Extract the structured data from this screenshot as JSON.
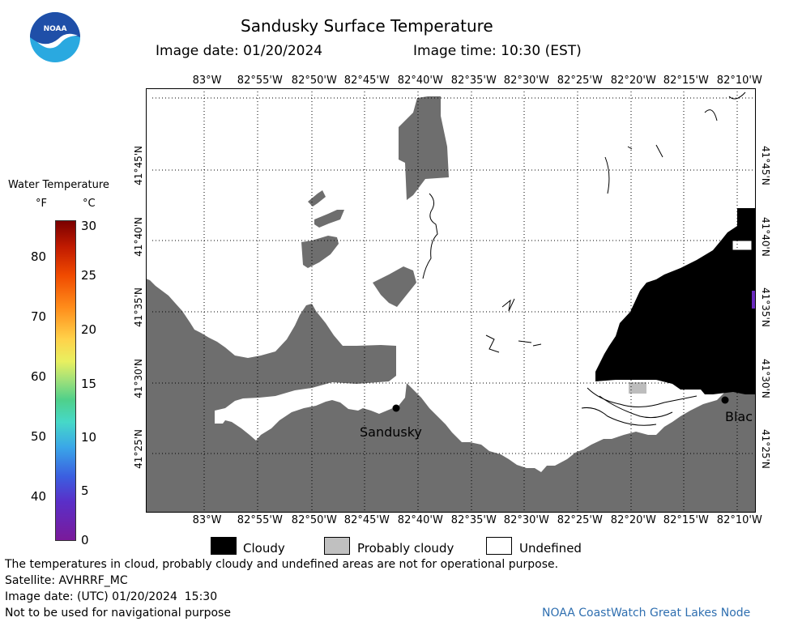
{
  "header": {
    "title": "Sandusky Surface Temperature",
    "image_date_label": "Image date: 01/20/2024",
    "image_time_label": "Image time: 10:30 (EST)"
  },
  "logo": {
    "text": "NOAA",
    "colors": {
      "top": "#1f4fa8",
      "bottom": "#2aa9e0",
      "bird": "#ffffff"
    }
  },
  "colorbar": {
    "title": "Water Temperature",
    "unit_f": "°F",
    "unit_c": "°C",
    "f_ticks": [
      "80",
      "70",
      "60",
      "50",
      "40"
    ],
    "c_ticks": [
      "30",
      "25",
      "20",
      "15",
      "10",
      "5",
      "0"
    ]
  },
  "map": {
    "lon_labels": [
      "83°W",
      "82°55'W",
      "82°50'W",
      "82°45'W",
      "82°40'W",
      "82°35'W",
      "82°30'W",
      "82°25'W",
      "82°20'W",
      "82°15'W",
      "82°10'W"
    ],
    "lat_labels": [
      "41°45'N",
      "41°40'N",
      "41°35'N",
      "41°30'N",
      "41°25'N"
    ],
    "places": [
      {
        "name": "Sandusky"
      },
      {
        "name": "Blac"
      }
    ],
    "colors": {
      "land": "#6e6e6e",
      "cloud": "#000000",
      "probably_cloudy": "#bdbdbd",
      "undefined": "#ffffff",
      "water_sliver": "#6a2bbf"
    }
  },
  "legend": {
    "items": [
      {
        "label": "Cloudy",
        "color": "#000000"
      },
      {
        "label": "Probably cloudy",
        "color": "#c0c0c0"
      },
      {
        "label": "Undefined",
        "color": "#ffffff"
      }
    ]
  },
  "footer": {
    "disclaimer": "The temperatures in cloud, probably cloudy and undefined areas are not for operational purpose.",
    "satellite": "Satellite: AVHRRF_MC",
    "utc_date": "Image date: (UTC) 01/20/2024  15:30",
    "nav_warning": "Not to be used for navigational purpose",
    "credit": "NOAA CoastWatch Great Lakes Node"
  }
}
